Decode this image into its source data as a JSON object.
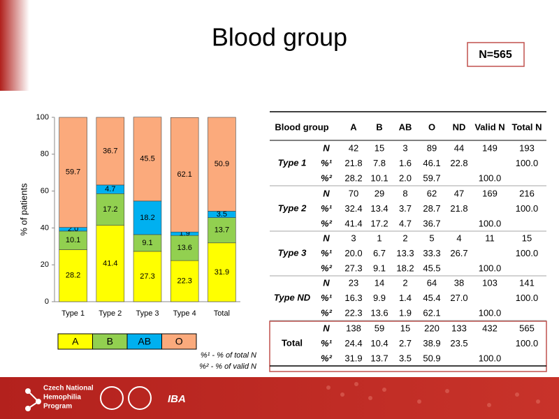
{
  "header": {
    "title": "Blood group",
    "badge": "N=565"
  },
  "chart_data": {
    "type": "bar",
    "stacked": true,
    "categories": [
      "Type 1",
      "Type 2",
      "Type 3",
      "Type 4",
      "Total"
    ],
    "ylabel": "% of patients",
    "ylim": [
      0,
      100
    ],
    "yticks": [
      0,
      20,
      40,
      60,
      80,
      100
    ],
    "series": [
      {
        "name": "A",
        "color": "#ffff00",
        "values": [
          28.2,
          41.4,
          27.3,
          22.3,
          31.9
        ]
      },
      {
        "name": "B",
        "color": "#92d050",
        "values": [
          10.1,
          17.2,
          9.1,
          13.6,
          13.7
        ]
      },
      {
        "name": "AB",
        "color": "#00b0f0",
        "values": [
          2.0,
          4.7,
          18.2,
          1.9,
          3.5
        ],
        "value_labels": [
          "2.0",
          "4.7",
          "18.2",
          "1.9",
          "3.5"
        ]
      },
      {
        "name": "O",
        "color": "#fbaa7c",
        "values": [
          59.7,
          36.7,
          45.5,
          62.1,
          50.9
        ]
      }
    ]
  },
  "notes": [
    "%¹ - % of total N",
    "%² - % of valid N"
  ],
  "table": {
    "columns": [
      "Blood group",
      "A",
      "B",
      "AB",
      "O",
      "ND",
      "Valid N",
      "Total N"
    ],
    "groups": [
      {
        "name": "Type 1",
        "rows": [
          {
            "label": "N",
            "cells": [
              "42",
              "15",
              "3",
              "89",
              "44",
              "149",
              "193"
            ]
          },
          {
            "label": "%¹",
            "cells": [
              "21.8",
              "7.8",
              "1.6",
              "46.1",
              "22.8",
              null,
              "100.0"
            ]
          },
          {
            "label": "%²",
            "cells": [
              "28.2",
              "10.1",
              "2.0",
              "59.7",
              null,
              "100.0",
              null
            ]
          }
        ]
      },
      {
        "name": "Type 2",
        "rows": [
          {
            "label": "N",
            "cells": [
              "70",
              "29",
              "8",
              "62",
              "47",
              "169",
              "216"
            ]
          },
          {
            "label": "%¹",
            "cells": [
              "32.4",
              "13.4",
              "3.7",
              "28.7",
              "21.8",
              null,
              "100.0"
            ]
          },
          {
            "label": "%²",
            "cells": [
              "41.4",
              "17.2",
              "4.7",
              "36.7",
              null,
              "100.0",
              null
            ]
          }
        ]
      },
      {
        "name": "Type 3",
        "rows": [
          {
            "label": "N",
            "cells": [
              "3",
              "1",
              "2",
              "5",
              "4",
              "11",
              "15"
            ]
          },
          {
            "label": "%¹",
            "cells": [
              "20.0",
              "6.7",
              "13.3",
              "33.3",
              "26.7",
              null,
              "100.0"
            ]
          },
          {
            "label": "%²",
            "cells": [
              "27.3",
              "9.1",
              "18.2",
              "45.5",
              null,
              "100.0",
              null
            ]
          }
        ]
      },
      {
        "name": "Type ND",
        "rows": [
          {
            "label": "N",
            "cells": [
              "23",
              "14",
              "2",
              "64",
              "38",
              "103",
              "141"
            ]
          },
          {
            "label": "%¹",
            "cells": [
              "16.3",
              "9.9",
              "1.4",
              "45.4",
              "27.0",
              null,
              "100.0"
            ]
          },
          {
            "label": "%²",
            "cells": [
              "22.3",
              "13.6",
              "1.9",
              "62.1",
              null,
              "100.0",
              null
            ]
          }
        ]
      },
      {
        "name": "Total",
        "rows": [
          {
            "label": "N",
            "cells": [
              "138",
              "59",
              "15",
              "220",
              "133",
              "432",
              "565"
            ]
          },
          {
            "label": "%¹",
            "cells": [
              "24.4",
              "10.4",
              "2.7",
              "38.9",
              "23.5",
              null,
              "100.0"
            ]
          },
          {
            "label": "%²",
            "cells": [
              "31.9",
              "13.7",
              "3.5",
              "50.9",
              null,
              "100.0",
              null
            ]
          }
        ]
      }
    ]
  },
  "footer": {
    "program": [
      "Czech National",
      "Hemophilia",
      "Program"
    ],
    "logo": "IBA"
  }
}
